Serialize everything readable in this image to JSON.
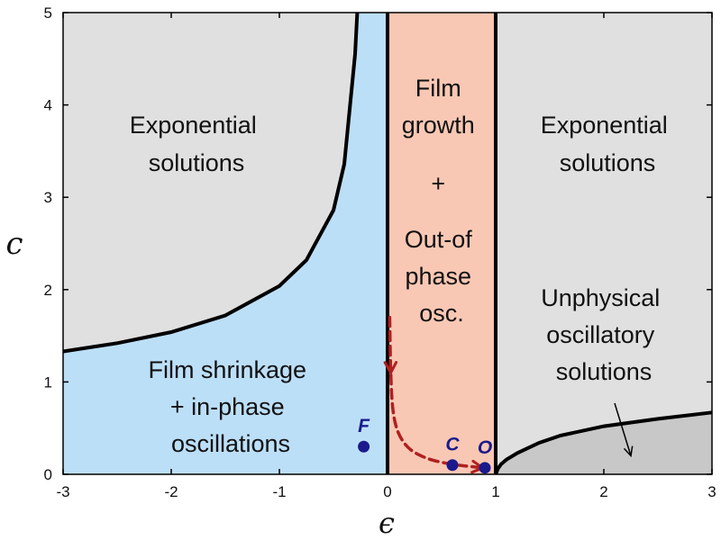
{
  "chart_data": {
    "type": "scatter",
    "xlabel": "ϵ",
    "ylabel": "c",
    "xlim": [
      -3,
      3
    ],
    "ylim": [
      0,
      5
    ],
    "xticks": [
      "-3",
      "-2",
      "-1",
      "0",
      "1",
      "2",
      "3"
    ],
    "yticks": [
      "0",
      "1",
      "2",
      "3",
      "4",
      "5"
    ],
    "regions": [
      {
        "lines": [
          "Exponential",
          "solutions"
        ],
        "color": "#e0e0e0"
      },
      {
        "lines": [
          "Film shrinkage",
          "+ in-phase",
          "oscillations"
        ],
        "color": "#bcdff8"
      },
      {
        "lines": [
          "Film",
          "growth",
          "+",
          "Out-of",
          "phase",
          "osc."
        ],
        "color": "#f9c8b4"
      },
      {
        "lines": [
          "Exponential",
          "solutions"
        ],
        "color": "#e0e0e0"
      },
      {
        "lines": [
          "Unphysical",
          "oscillatory",
          "solutions"
        ],
        "color": "#c8c8c8"
      }
    ],
    "boundary_left": {
      "x": [
        -3,
        -2.5,
        -2,
        -1.5,
        -1,
        -0.75,
        -0.5,
        -0.4,
        -0.3,
        -0.28
      ],
      "y": [
        1.33,
        1.42,
        1.54,
        1.72,
        2.04,
        2.32,
        2.86,
        3.36,
        4.55,
        5.0
      ]
    },
    "boundary_right": {
      "x": [
        1,
        1.02,
        1.05,
        1.1,
        1.2,
        1.4,
        1.6,
        2.0,
        2.5,
        3.0
      ],
      "y": [
        0,
        0.06,
        0.11,
        0.16,
        0.23,
        0.34,
        0.42,
        0.52,
        0.6,
        0.67
      ]
    },
    "vertical_lines_x": [
      0,
      1
    ],
    "points": [
      {
        "label": "F",
        "x": -0.22,
        "y": 0.3
      },
      {
        "label": "C",
        "x": 0.6,
        "y": 0.1
      },
      {
        "label": "O",
        "x": 0.9,
        "y": 0.07
      }
    ],
    "trajectory": {
      "x": [
        0.02,
        0.03,
        0.05,
        0.1,
        0.2,
        0.35,
        0.5,
        0.65,
        0.8,
        0.88
      ],
      "y": [
        1.7,
        1.1,
        0.7,
        0.45,
        0.28,
        0.18,
        0.13,
        0.1,
        0.08,
        0.07
      ],
      "color": "#b02020"
    },
    "annotation_arrow": {
      "from": [
        2.1,
        0.77
      ],
      "to": [
        2.25,
        0.2
      ]
    },
    "colors": {
      "axis": "#000000",
      "boundary": "#000000",
      "point": "#1a1a8c",
      "arrow": "#b02020"
    }
  }
}
